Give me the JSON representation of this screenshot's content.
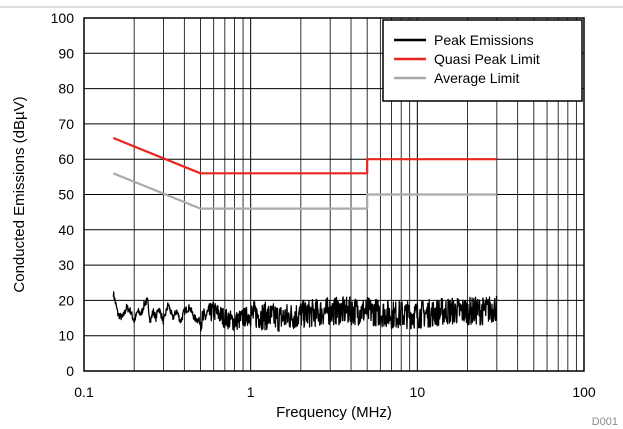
{
  "chart_data": {
    "type": "line",
    "title": "",
    "xlabel": "Frequency (MHz)",
    "ylabel": "Conducted Emissions (dBµV)",
    "xscale": "log",
    "xlim": [
      0.1,
      100
    ],
    "ylim": [
      0,
      100
    ],
    "x_ticks": [
      "0.1",
      "1",
      "10",
      "100"
    ],
    "y_ticks": [
      "0",
      "10",
      "20",
      "30",
      "40",
      "50",
      "60",
      "70",
      "80",
      "90",
      "100"
    ],
    "grid": true,
    "legend_position": "top-right",
    "figure_id": "D001",
    "series": [
      {
        "name": "Peak Emissions",
        "color": "#000000",
        "x_range": [
          0.15,
          30
        ],
        "x": [
          0.15,
          0.16,
          0.17,
          0.18,
          0.19,
          0.2,
          0.21,
          0.22,
          0.23,
          0.24,
          0.25,
          0.26,
          0.27,
          0.28,
          0.29,
          0.3,
          0.32,
          0.34,
          0.36,
          0.38,
          0.4,
          0.43,
          0.46,
          0.5,
          0.55,
          0.6,
          0.7,
          0.8,
          1,
          1.5,
          2,
          3,
          5,
          7,
          10,
          15,
          20,
          25,
          30
        ],
        "y": [
          22,
          16,
          15,
          18,
          17,
          14,
          17,
          16,
          19,
          20,
          14,
          17,
          15,
          18,
          16,
          14,
          19,
          15,
          17,
          14,
          17,
          18,
          15,
          14,
          16,
          17,
          15,
          14,
          16,
          15,
          16,
          17,
          17,
          16,
          16,
          17,
          17,
          17,
          18
        ],
        "noise_band_db": 8
      },
      {
        "name": "Quasi Peak Limit",
        "color": "#e8251f",
        "x": [
          0.15,
          0.5,
          5,
          5,
          30
        ],
        "y": [
          66,
          56,
          56,
          60,
          60
        ]
      },
      {
        "name": "Average Limit",
        "color": "#aaaaaa",
        "x": [
          0.15,
          0.5,
          5,
          5,
          30
        ],
        "y": [
          56,
          46,
          46,
          50,
          50
        ]
      }
    ]
  }
}
